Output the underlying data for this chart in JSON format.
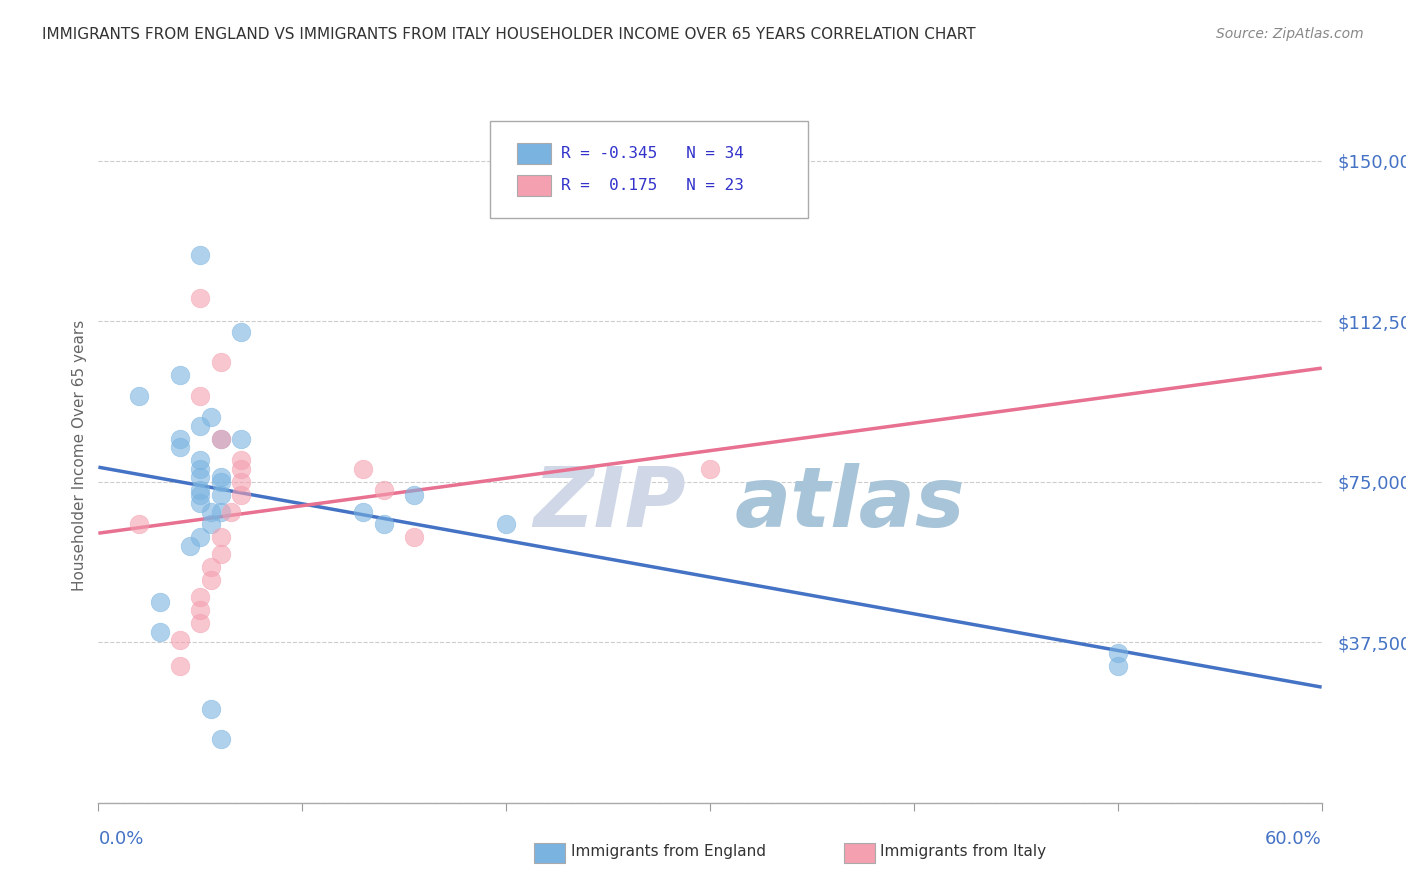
{
  "title": "IMMIGRANTS FROM ENGLAND VS IMMIGRANTS FROM ITALY HOUSEHOLDER INCOME OVER 65 YEARS CORRELATION CHART",
  "source": "Source: ZipAtlas.com",
  "ylabel": "Householder Income Over 65 years",
  "xlim": [
    0.0,
    0.6
  ],
  "ylim": [
    0,
    162500
  ],
  "yticks": [
    0,
    37500,
    75000,
    112500,
    150000
  ],
  "ytick_labels": [
    "",
    "$37,500",
    "$75,000",
    "$112,500",
    "$150,000"
  ],
  "background_color": "#ffffff",
  "grid_color": "#cccccc",
  "title_color": "#333333",
  "axis_label_color": "#4472c4",
  "england_color": "#7ab3e0",
  "italy_color": "#f4a0b0",
  "england_line_color": "#4472c4",
  "italy_line_color": "#e87090",
  "dashed_line_color": "#e8b0c0",
  "legend_england_R": "-0.345",
  "legend_england_N": "34",
  "legend_italy_R": "0.175",
  "legend_italy_N": "23",
  "england_x": [
    0.02,
    0.04,
    0.05,
    0.04,
    0.04,
    0.05,
    0.055,
    0.06,
    0.05,
    0.05,
    0.05,
    0.05,
    0.06,
    0.05,
    0.05,
    0.06,
    0.055,
    0.05,
    0.045,
    0.07,
    0.07,
    0.06,
    0.06,
    0.055,
    0.13,
    0.14,
    0.155,
    0.2,
    0.5,
    0.5,
    0.03,
    0.03,
    0.055,
    0.06
  ],
  "england_y": [
    95000,
    83000,
    128000,
    100000,
    85000,
    88000,
    90000,
    85000,
    80000,
    78000,
    76000,
    72000,
    75000,
    73000,
    70000,
    68000,
    65000,
    62000,
    60000,
    110000,
    85000,
    76000,
    72000,
    68000,
    68000,
    65000,
    72000,
    65000,
    35000,
    32000,
    47000,
    40000,
    22000,
    15000
  ],
  "italy_x": [
    0.02,
    0.05,
    0.06,
    0.05,
    0.06,
    0.07,
    0.07,
    0.07,
    0.07,
    0.065,
    0.06,
    0.13,
    0.14,
    0.155,
    0.3,
    0.06,
    0.055,
    0.055,
    0.05,
    0.05,
    0.05,
    0.04,
    0.04
  ],
  "italy_y": [
    65000,
    118000,
    103000,
    95000,
    85000,
    80000,
    78000,
    75000,
    72000,
    68000,
    62000,
    78000,
    73000,
    62000,
    78000,
    58000,
    55000,
    52000,
    48000,
    45000,
    42000,
    38000,
    32000
  ],
  "watermark_top": "ZIP",
  "watermark_bottom": "atlas",
  "watermark_color_top": "#d0d8e8",
  "watermark_color_bottom": "#a8c4d8"
}
